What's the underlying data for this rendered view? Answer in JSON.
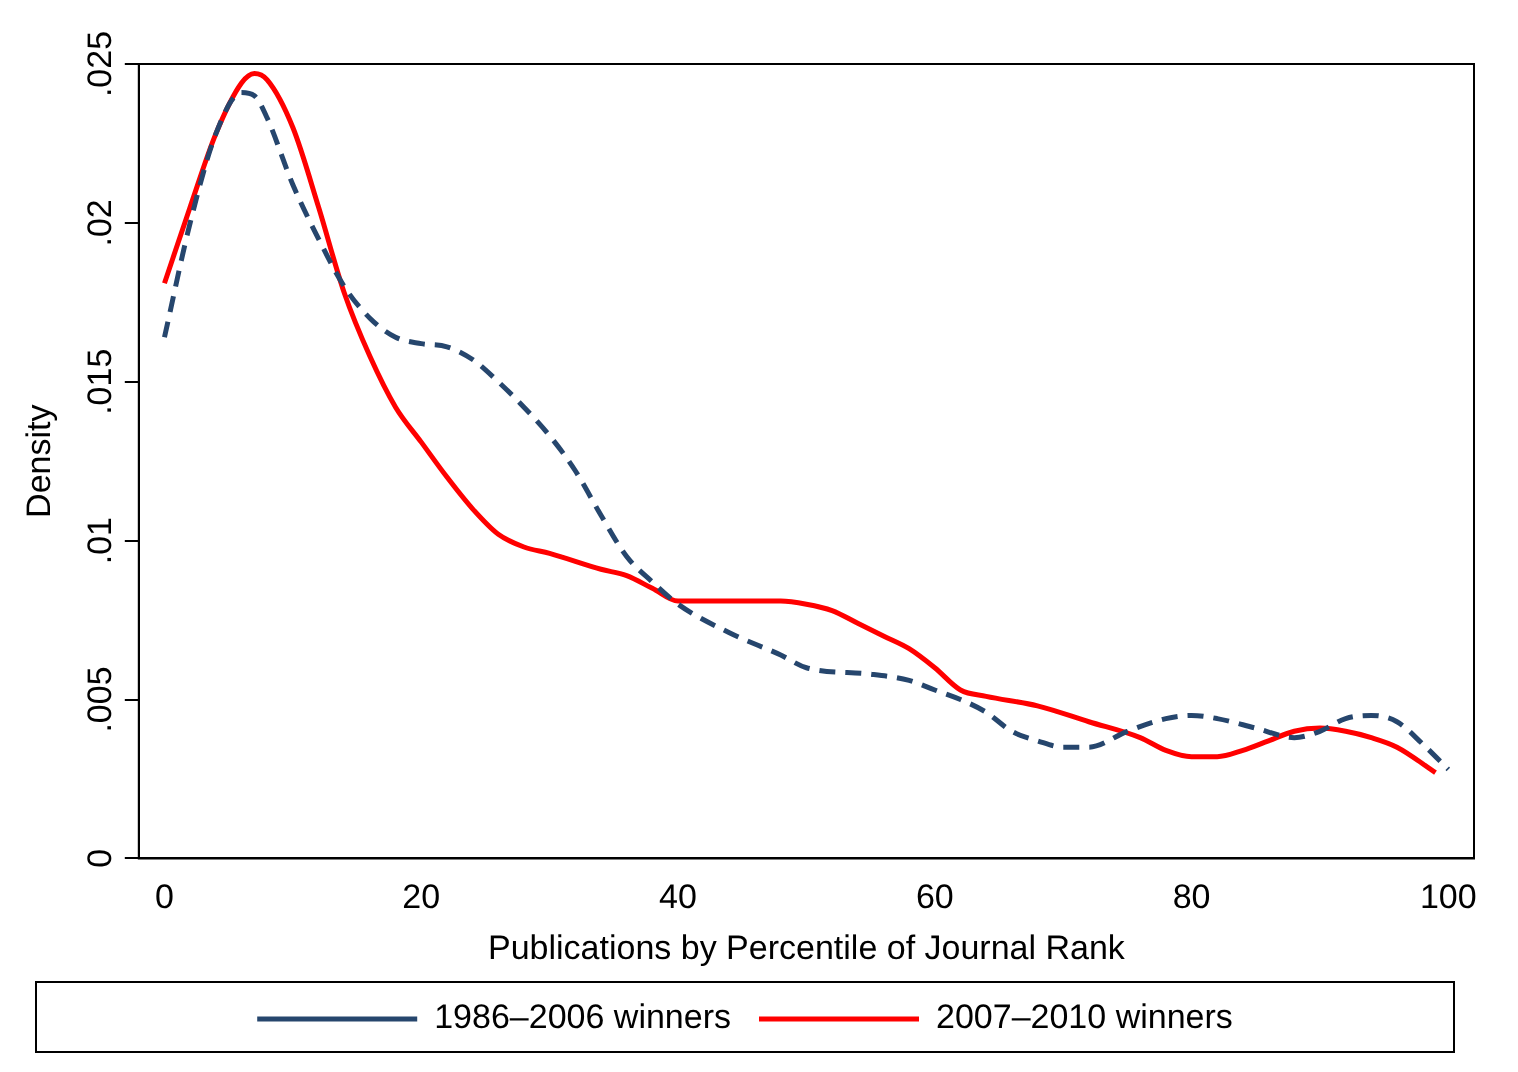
{
  "chart_data": {
    "type": "line",
    "xlabel": "Publications by Percentile of Journal Rank",
    "ylabel": "Density",
    "xlim": [
      -2,
      102
    ],
    "xticks": [
      0,
      20,
      40,
      60,
      80,
      100
    ],
    "ylim": [
      0,
      0.025
    ],
    "yticks": [
      0,
      {
        "value": 0.005,
        "label": ".005"
      },
      {
        "value": 0.01,
        "label": ".01"
      },
      {
        "value": 0.015,
        "label": ".015"
      },
      {
        "value": 0.02,
        "label": ".02"
      },
      {
        "value": 0.025,
        "label": ".025"
      }
    ],
    "grid": false,
    "legend": "bottom",
    "marker": "none",
    "series": [
      {
        "name": "1986–2006 winners",
        "color": "#26466d",
        "line_style": "dashed",
        "x": [
          0,
          2,
          4,
          6,
          7,
          8,
          10,
          12,
          14,
          16,
          18,
          20,
          22,
          24,
          26,
          28,
          30,
          32,
          34,
          36,
          38,
          40,
          44,
          48,
          50,
          55,
          58,
          60,
          62,
          64,
          66,
          68,
          70,
          72,
          75,
          78,
          80,
          82,
          85,
          88,
          90,
          92,
          94,
          96,
          98,
          100
        ],
        "values": [
          0.0164,
          0.02,
          0.0228,
          0.0241,
          0.024,
          0.0233,
          0.0212,
          0.0195,
          0.018,
          0.017,
          0.0164,
          0.0162,
          0.0161,
          0.0157,
          0.015,
          0.0142,
          0.0133,
          0.0122,
          0.0108,
          0.0095,
          0.0087,
          0.008,
          0.0071,
          0.0064,
          0.006,
          0.0058,
          0.0056,
          0.0053,
          0.005,
          0.0046,
          0.004,
          0.0037,
          0.0035,
          0.0035,
          0.004,
          0.0044,
          0.0045,
          0.0044,
          0.0041,
          0.0038,
          0.004,
          0.0044,
          0.0045,
          0.0043,
          0.0036,
          0.0028
        ]
      },
      {
        "name": "2007–2010 winners",
        "color": "#ff0000",
        "line_style": "solid",
        "x": [
          0,
          2,
          4,
          6,
          7,
          8,
          10,
          12,
          14,
          16,
          18,
          20,
          22,
          24,
          26,
          28,
          30,
          34,
          36,
          38,
          40,
          44,
          48,
          50,
          52,
          54,
          56,
          58,
          60,
          62,
          64,
          68,
          72,
          76,
          78,
          80,
          82,
          84,
          86,
          88,
          90,
          92,
          94,
          96,
          99
        ],
        "values": [
          0.0181,
          0.0205,
          0.0228,
          0.0244,
          0.0247,
          0.0245,
          0.023,
          0.0205,
          0.0178,
          0.0158,
          0.0142,
          0.0131,
          0.012,
          0.011,
          0.0102,
          0.0098,
          0.0096,
          0.0091,
          0.0089,
          0.0085,
          0.0081,
          0.0081,
          0.0081,
          0.008,
          0.0078,
          0.0074,
          0.007,
          0.0066,
          0.006,
          0.0053,
          0.0051,
          0.0048,
          0.0043,
          0.0038,
          0.0034,
          0.0032,
          0.0032,
          0.0034,
          0.0037,
          0.004,
          0.0041,
          0.004,
          0.0038,
          0.0035,
          0.0027
        ]
      }
    ]
  }
}
